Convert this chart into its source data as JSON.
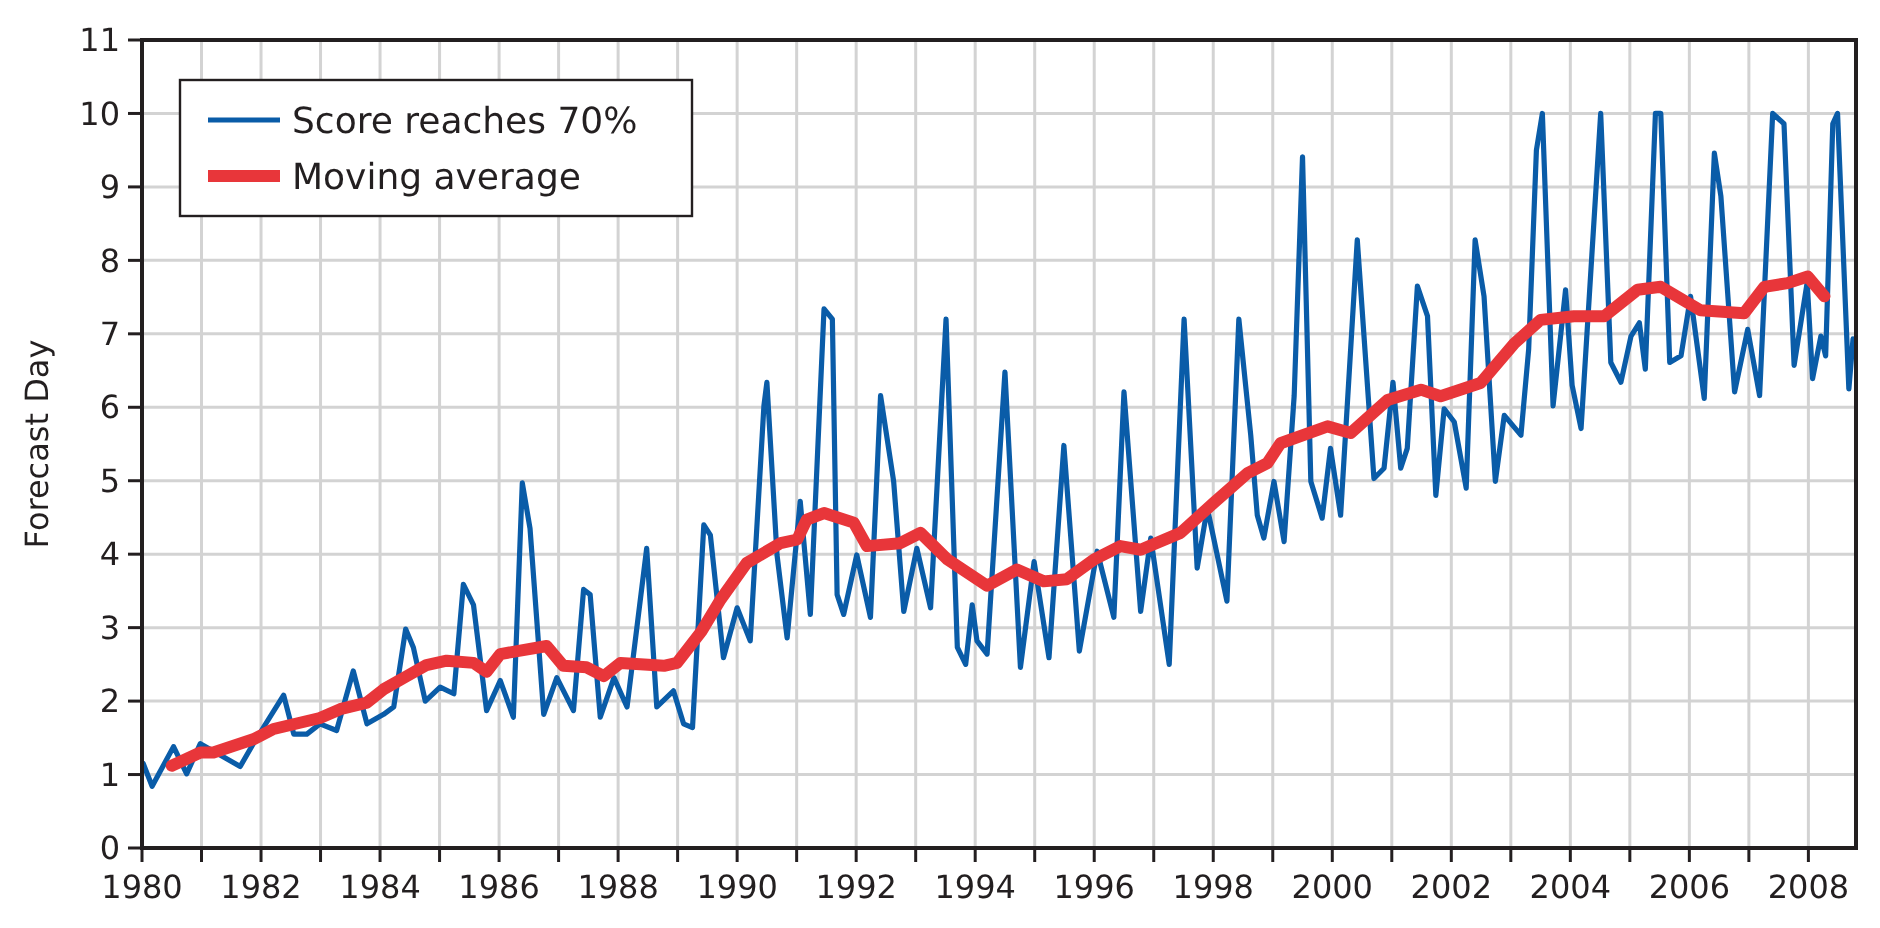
{
  "chart_data": {
    "type": "line",
    "ylabel": "Forecast Day",
    "xlim": [
      1980,
      2008.8
    ],
    "ylim": [
      0,
      11
    ],
    "xticks": [
      {
        "value": 1980,
        "label": "1980"
      },
      {
        "value": 1981,
        "label": null
      },
      {
        "value": 1982,
        "label": "1982"
      },
      {
        "value": 1983,
        "label": null
      },
      {
        "value": 1984,
        "label": "1984"
      },
      {
        "value": 1985,
        "label": null
      },
      {
        "value": 1986,
        "label": "1986"
      },
      {
        "value": 1987,
        "label": null
      },
      {
        "value": 1988,
        "label": "1988"
      },
      {
        "value": 1989,
        "label": null
      },
      {
        "value": 1990,
        "label": "1990"
      },
      {
        "value": 1991,
        "label": null
      },
      {
        "value": 1992,
        "label": "1992"
      },
      {
        "value": 1993,
        "label": null
      },
      {
        "value": 1994,
        "label": "1994"
      },
      {
        "value": 1995,
        "label": null
      },
      {
        "value": 1996,
        "label": "1996"
      },
      {
        "value": 1997,
        "label": null
      },
      {
        "value": 1998,
        "label": "1998"
      },
      {
        "value": 1999,
        "label": null
      },
      {
        "value": 2000,
        "label": "2000"
      },
      {
        "value": 2001,
        "label": null
      },
      {
        "value": 2002,
        "label": "2002"
      },
      {
        "value": 2003,
        "label": null
      },
      {
        "value": 2004,
        "label": "2004"
      },
      {
        "value": 2005,
        "label": null
      },
      {
        "value": 2006,
        "label": "2006"
      },
      {
        "value": 2007,
        "label": null
      },
      {
        "value": 2008,
        "label": "2008"
      }
    ],
    "yticks": [
      0,
      1,
      2,
      3,
      4,
      5,
      6,
      7,
      8,
      9,
      10,
      11
    ],
    "grid": true,
    "legend": "top left",
    "marker": "none",
    "line_style": "solid",
    "series": [
      {
        "name": "Score reaches 70%",
        "color": "#0a5ca8",
        "x": [
          1980.02,
          1980.17,
          1980.53,
          1980.75,
          1980.98,
          1981.65,
          1981.87,
          1982.38,
          1982.55,
          1982.77,
          1982.99,
          1983.27,
          1983.55,
          1983.78,
          1984.06,
          1984.23,
          1984.43,
          1984.56,
          1984.76,
          1985.01,
          1985.24,
          1985.4,
          1985.57,
          1985.79,
          1986.02,
          1986.24,
          1986.39,
          1986.52,
          1986.75,
          1986.97,
          1987.25,
          1987.42,
          1987.53,
          1987.7,
          1987.93,
          1988.15,
          1988.48,
          1988.65,
          1988.93,
          1989.1,
          1989.25,
          1989.44,
          1989.55,
          1989.77,
          1990.0,
          1990.22,
          1990.45,
          1990.5,
          1990.67,
          1990.84,
          1991.06,
          1991.23,
          1991.46,
          1991.6,
          1991.68,
          1991.79,
          1992.01,
          1992.24,
          1992.41,
          1992.63,
          1992.8,
          1993.02,
          1993.25,
          1993.51,
          1993.7,
          1993.84,
          1993.95,
          1994.03,
          1994.2,
          1994.5,
          1994.76,
          1994.99,
          1995.24,
          1995.49,
          1995.75,
          1996.05,
          1996.33,
          1996.5,
          1996.78,
          1996.95,
          1997.26,
          1997.51,
          1997.73,
          1997.9,
          1998.23,
          1998.43,
          1998.63,
          1998.74,
          1998.85,
          1999.02,
          1999.19,
          1999.36,
          1999.5,
          1999.64,
          1999.83,
          1999.97,
          2000.14,
          2000.42,
          2000.7,
          2000.87,
          2001.02,
          2001.15,
          2001.26,
          2001.43,
          2001.6,
          2001.74,
          2001.88,
          2002.05,
          2002.25,
          2002.4,
          2002.55,
          2002.74,
          2002.89,
          2003.17,
          2003.3,
          2003.43,
          2003.53,
          2003.71,
          2003.92,
          2004.03,
          2004.18,
          2004.51,
          2004.68,
          2004.85,
          2005.02,
          2005.16,
          2005.26,
          2005.43,
          2005.52,
          2005.67,
          2005.86,
          2006.02,
          2006.25,
          2006.42,
          2006.53,
          2006.76,
          2006.98,
          2007.18,
          2007.4,
          2007.59,
          2007.76,
          2007.98,
          2008.07,
          2008.21,
          2008.29,
          2008.41,
          2008.49,
          2008.68,
          2008.75
        ],
        "values": [
          1.15,
          0.84,
          1.38,
          1.01,
          1.42,
          1.11,
          1.42,
          2.08,
          1.55,
          1.55,
          1.69,
          1.6,
          2.41,
          1.69,
          1.82,
          1.92,
          2.98,
          2.73,
          2.0,
          2.19,
          2.1,
          3.59,
          3.31,
          1.87,
          2.28,
          1.78,
          4.97,
          4.35,
          1.82,
          2.32,
          1.87,
          3.52,
          3.45,
          1.78,
          2.32,
          1.92,
          4.08,
          1.92,
          2.14,
          1.69,
          1.64,
          4.4,
          4.26,
          2.59,
          3.27,
          2.82,
          6.02,
          6.34,
          3.99,
          2.86,
          4.72,
          3.18,
          7.34,
          7.2,
          3.45,
          3.18,
          3.99,
          3.14,
          6.16,
          4.99,
          3.22,
          4.08,
          3.27,
          7.2,
          2.73,
          2.5,
          3.31,
          2.82,
          2.64,
          6.48,
          2.46,
          3.9,
          2.59,
          5.48,
          2.68,
          4.04,
          3.14,
          6.21,
          3.22,
          4.22,
          2.5,
          7.2,
          3.81,
          4.63,
          3.36,
          7.2,
          5.62,
          4.53,
          4.22,
          4.99,
          4.17,
          6.16,
          9.41,
          4.99,
          4.49,
          5.44,
          4.53,
          8.28,
          5.03,
          5.17,
          6.34,
          5.17,
          5.44,
          7.65,
          7.24,
          4.8,
          5.98,
          5.8,
          4.9,
          8.28,
          7.51,
          4.99,
          5.89,
          5.62,
          6.79,
          9.5,
          10.0,
          6.02,
          7.6,
          6.3,
          5.71,
          10.0,
          6.61,
          6.34,
          6.97,
          7.15,
          6.52,
          10.0,
          10.0,
          6.61,
          6.7,
          7.51,
          6.12,
          9.46,
          8.87,
          6.21,
          7.06,
          6.16,
          10.0,
          9.86,
          6.57,
          7.7,
          6.39,
          6.97,
          6.7,
          9.86,
          10.0,
          6.25,
          6.93
        ]
      },
      {
        "name": "Moving average",
        "color": "#e8363a",
        "x": [
          1980.5,
          1980.98,
          1981.2,
          1981.87,
          1982.21,
          1982.99,
          1983.33,
          1983.78,
          1984.06,
          1984.45,
          1984.78,
          1985.12,
          1985.57,
          1985.79,
          1986.02,
          1986.8,
          1987.08,
          1987.47,
          1987.76,
          1988.04,
          1988.77,
          1988.99,
          1989.4,
          1989.72,
          1990.16,
          1990.73,
          1991.01,
          1991.17,
          1991.46,
          1991.96,
          1992.18,
          1992.74,
          1993.08,
          1993.53,
          1994.2,
          1994.7,
          1995.15,
          1995.54,
          1996.0,
          1996.44,
          1996.78,
          1997.45,
          1998.01,
          1998.57,
          1998.91,
          1999.13,
          1999.92,
          2000.31,
          2000.93,
          2001.49,
          2001.82,
          2002.49,
          2003.06,
          2003.5,
          2004.06,
          2004.57,
          2005.13,
          2005.52,
          2006.19,
          2006.92,
          2007.26,
          2007.65,
          2007.99,
          2008.27
        ],
        "values": [
          1.12,
          1.3,
          1.3,
          1.48,
          1.62,
          1.77,
          1.89,
          1.98,
          2.16,
          2.34,
          2.49,
          2.55,
          2.52,
          2.4,
          2.64,
          2.75,
          2.48,
          2.46,
          2.34,
          2.52,
          2.48,
          2.52,
          2.95,
          3.38,
          3.88,
          4.15,
          4.2,
          4.47,
          4.56,
          4.43,
          4.11,
          4.15,
          4.29,
          3.93,
          3.57,
          3.79,
          3.63,
          3.66,
          3.93,
          4.11,
          4.06,
          4.29,
          4.7,
          5.1,
          5.24,
          5.51,
          5.74,
          5.65,
          6.1,
          6.24,
          6.15,
          6.33,
          6.87,
          7.19,
          7.24,
          7.24,
          7.6,
          7.64,
          7.32,
          7.28,
          7.64,
          7.69,
          7.78,
          7.51
        ]
      }
    ]
  }
}
